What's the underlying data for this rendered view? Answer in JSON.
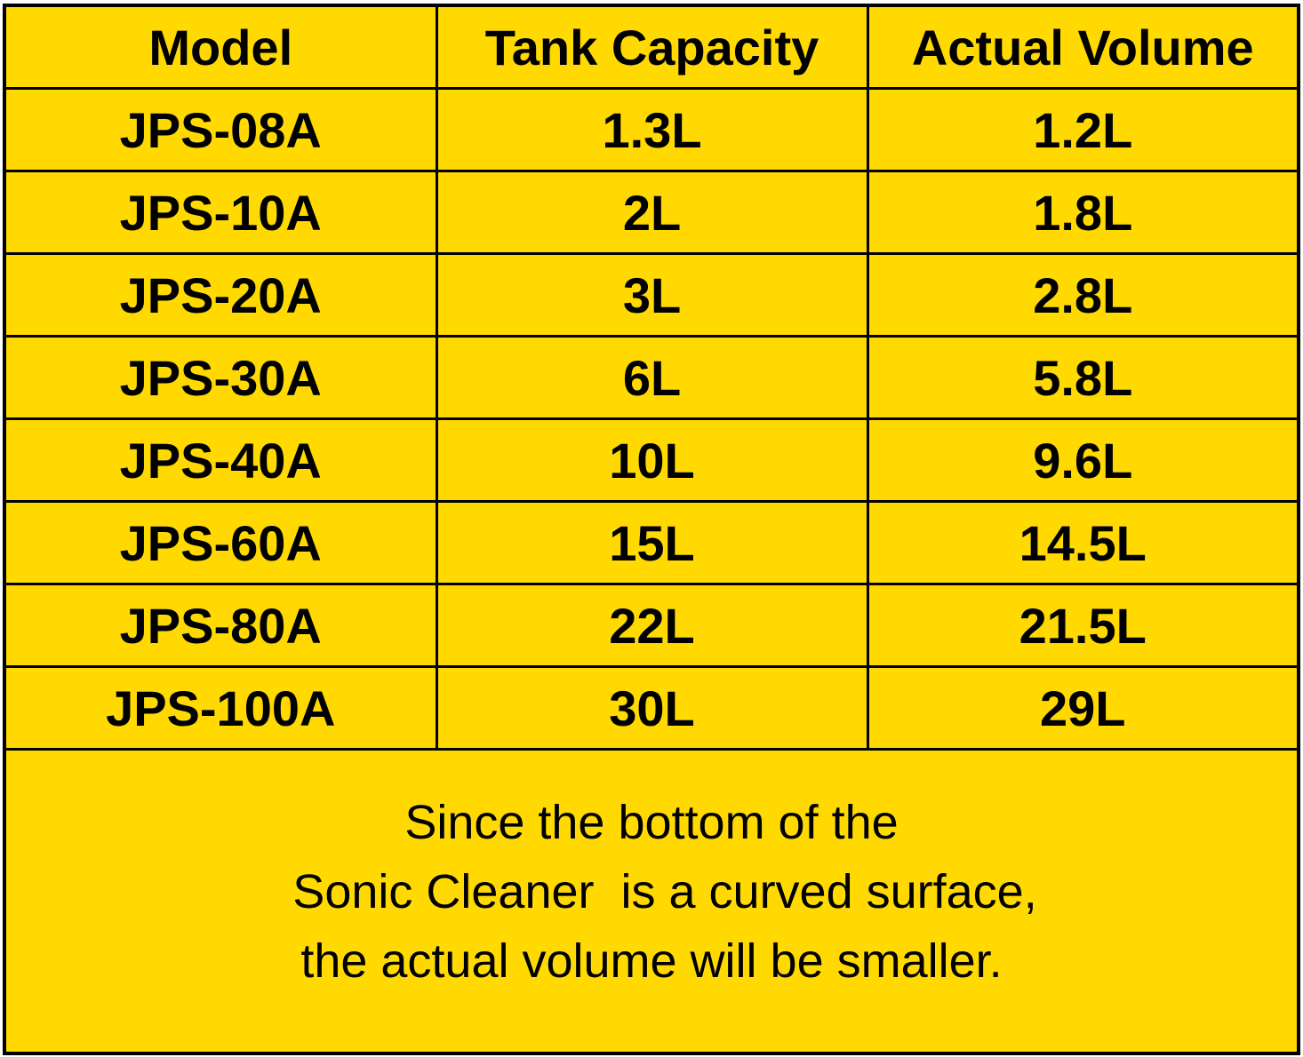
{
  "colors": {
    "background": "#FFD900",
    "border": "#000000"
  },
  "table": {
    "headers": [
      "Model",
      "Tank Capacity",
      "Actual Volume"
    ],
    "rows": [
      [
        "JPS-08A",
        "1.3L",
        "1.2L"
      ],
      [
        "JPS-10A",
        "2L",
        "1.8L"
      ],
      [
        "JPS-20A",
        "3L",
        "2.8L"
      ],
      [
        "JPS-30A",
        "6L",
        "5.8L"
      ],
      [
        "JPS-40A",
        "10L",
        "9.6L"
      ],
      [
        "JPS-60A",
        "15L",
        "14.5L"
      ],
      [
        "JPS-80A",
        "22L",
        "21.5L"
      ],
      [
        "JPS-100A",
        "30L",
        "29L"
      ]
    ]
  },
  "note": {
    "lines": [
      "Since the bottom of the",
      "  Sonic Cleaner  is a curved surface,",
      "the actual volume will be smaller."
    ]
  }
}
